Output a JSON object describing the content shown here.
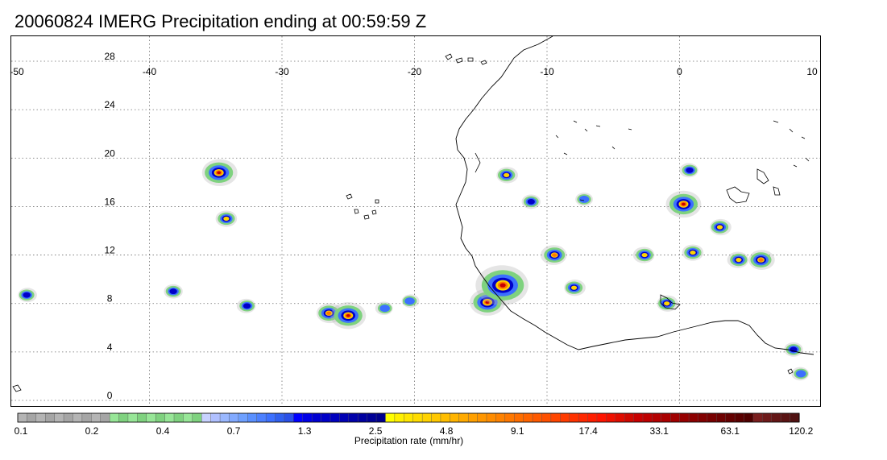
{
  "title": "20060824 IMERG Precipitation ending at 00:59:59 Z",
  "map": {
    "lon_range": [
      -50,
      10
    ],
    "lat_range": [
      -0.5,
      29.5
    ],
    "lon_ticks": [
      -50,
      -40,
      -30,
      -20,
      -10,
      0,
      10
    ],
    "lat_ticks": [
      0,
      4,
      8,
      12,
      16,
      20,
      24,
      28
    ],
    "lon_tick_labels": [
      "-50",
      "-40",
      "-30",
      "-20",
      "-10",
      "0",
      "10"
    ],
    "lat_tick_labels": [
      "0",
      "4",
      "8",
      "12",
      "16",
      "20",
      "24",
      "28"
    ],
    "grid": "dotted",
    "region": "Tropical eastern Atlantic and West Africa",
    "precip_cells": [
      {
        "lon": -34.7,
        "lat": 18.8,
        "peak": 17.4
      },
      {
        "lon": -34.2,
        "lat": 15.0,
        "peak": 4.8
      },
      {
        "lon": -32.7,
        "lat": 7.8,
        "peak": 2.5
      },
      {
        "lon": -26.4,
        "lat": 7.2,
        "peak": 9.1
      },
      {
        "lon": -25.0,
        "lat": 7.0,
        "peak": 17.4
      },
      {
        "lon": -22.3,
        "lat": 7.6,
        "peak": 1.3
      },
      {
        "lon": -20.3,
        "lat": 8.2,
        "peak": 1.3
      },
      {
        "lon": -14.5,
        "lat": 8.1,
        "peak": 17.4
      },
      {
        "lon": -13.4,
        "lat": 9.5,
        "peak": 33.1
      },
      {
        "lon": -13.0,
        "lat": 18.6,
        "peak": 4.8
      },
      {
        "lon": -11.2,
        "lat": 16.4,
        "peak": 2.5
      },
      {
        "lon": -9.5,
        "lat": 12.0,
        "peak": 9.1
      },
      {
        "lon": -7.9,
        "lat": 9.3,
        "peak": 4.8
      },
      {
        "lon": -7.2,
        "lat": 16.6,
        "peak": 1.3
      },
      {
        "lon": -2.7,
        "lat": 12.0,
        "peak": 4.8
      },
      {
        "lon": -0.9,
        "lat": 8.0,
        "peak": 4.8
      },
      {
        "lon": 0.3,
        "lat": 16.2,
        "peak": 17.4
      },
      {
        "lon": 0.7,
        "lat": 19.0,
        "peak": 2.5
      },
      {
        "lon": 3.1,
        "lat": 14.3,
        "peak": 4.8
      },
      {
        "lon": 1.0,
        "lat": 12.2,
        "peak": 4.8
      },
      {
        "lon": 4.4,
        "lat": 11.6,
        "peak": 4.8
      },
      {
        "lon": 6.2,
        "lat": 11.6,
        "peak": 9.1
      },
      {
        "lon": 8.6,
        "lat": 4.2,
        "peak": 2.5
      },
      {
        "lon": 9.1,
        "lat": 2.2,
        "peak": 1.3
      },
      {
        "lon": -49.2,
        "lat": 8.7,
        "peak": 2.5
      },
      {
        "lon": -38.2,
        "lat": 9.0,
        "peak": 2.5
      }
    ]
  },
  "colorbar": {
    "title": "Precipitation rate (mm/hr)",
    "colors": [
      "#b4b4b4",
      "#a5a5a5",
      "#b4b4b4",
      "#a5a5a5",
      "#b4b4b4",
      "#a5a5a5",
      "#b4b4b4",
      "#a5a5a5",
      "#b4b4b4",
      "#a5a5a5",
      "#97e697",
      "#7fd27f",
      "#97e697",
      "#7fd27f",
      "#97e697",
      "#7fd27f",
      "#97e697",
      "#7fd27f",
      "#97e697",
      "#7fd27f",
      "#c8d2ff",
      "#b0c0ff",
      "#9ab8ff",
      "#82aaff",
      "#6ea0ff",
      "#5a90ff",
      "#4c80ff",
      "#3c70ff",
      "#3060f0",
      "#2a50e8",
      "#0000ff",
      "#0000e6",
      "#0000d2",
      "#0000c8",
      "#0000be",
      "#0000b4",
      "#0000aa",
      "#0000a0",
      "#000096",
      "#00008c",
      "#ffff00",
      "#fff000",
      "#ffe600",
      "#ffdc00",
      "#ffd200",
      "#ffc800",
      "#ffbe00",
      "#ffb400",
      "#ffaa00",
      "#ffa000",
      "#ff9600",
      "#ff8c00",
      "#ff8200",
      "#ff7800",
      "#ff6e00",
      "#ff6400",
      "#ff5a00",
      "#ff5000",
      "#ff4600",
      "#ff3c00",
      "#ff3200",
      "#ff2800",
      "#ff1e00",
      "#ff1400",
      "#f01000",
      "#e00c00",
      "#d00800",
      "#c80000",
      "#be0000",
      "#b40000",
      "#aa0000",
      "#a00000",
      "#960000",
      "#8c0000",
      "#820000",
      "#780000",
      "#6e0000",
      "#640000",
      "#5a0000",
      "#500000",
      "#7a1e1e",
      "#6e1a1a",
      "#641616",
      "#5a1414",
      "#501212"
    ],
    "tick_labels": [
      "0.1",
      "0.2",
      "0.4",
      "0.7",
      "1.3",
      "2.5",
      "4.8",
      "9.1",
      "17.4",
      "33.1",
      "63.1",
      "120.2"
    ]
  },
  "colors": {
    "coastline": "#000000",
    "grid": "#6e6e6e",
    "precip_light": "#b4b4b4",
    "precip_green": "#7fd27f",
    "precip_blue": "#3c70ff",
    "precip_darkblue": "#0000c8",
    "precip_yellow": "#ffd200",
    "precip_orange": "#ff7800",
    "precip_red": "#c80000"
  }
}
